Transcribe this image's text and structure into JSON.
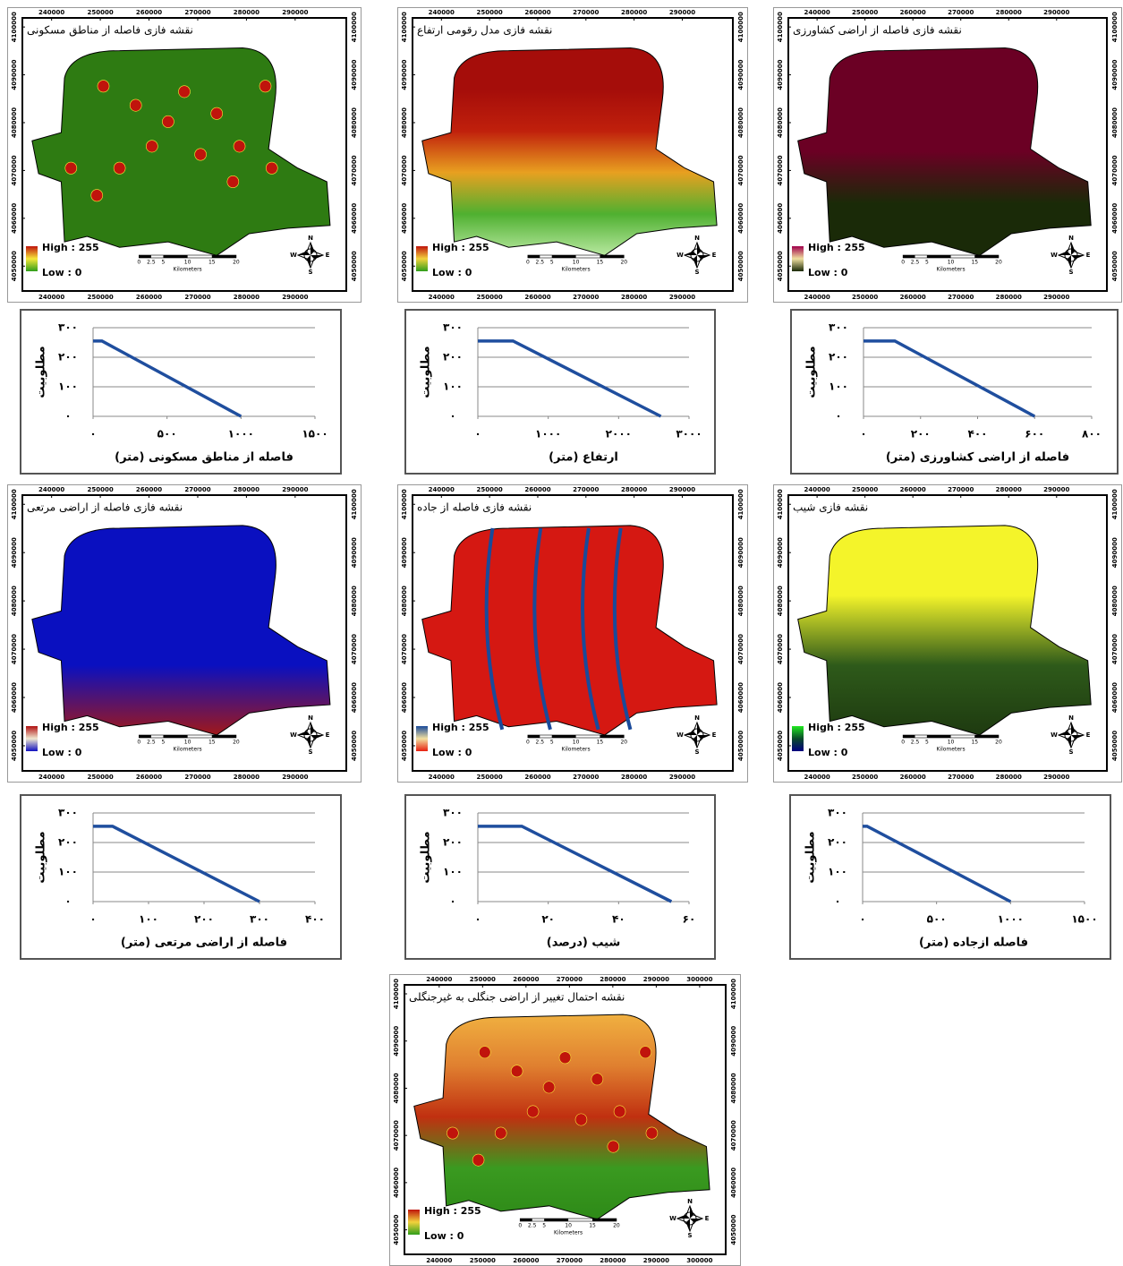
{
  "map_axes": {
    "xticks": [
      240000,
      250000,
      260000,
      270000,
      280000,
      290000
    ],
    "xlim": [
      234000,
      300500
    ],
    "yticks": [
      4050000,
      4060000,
      4070000,
      4080000,
      4090000,
      4100000
    ],
    "ylim": [
      4044800,
      4101900
    ]
  },
  "map_legend": {
    "high": "High : 255",
    "low": "Low : 0"
  },
  "scale_bar": {
    "labels": [
      0,
      2.5,
      5,
      10,
      15,
      20
    ],
    "unit": "Kilometers"
  },
  "compass": {
    "north": "N",
    "east": "E",
    "south": "S",
    "west": "W"
  },
  "maps": [
    {
      "title": "نقشه فازی فاصله از مناطق مسکونی",
      "fill": [
        "#2e7b12",
        "#2e7b12"
      ],
      "legend_colors": [
        "#c0140c",
        "#f6e83a",
        "#2f9e1a"
      ]
    },
    {
      "title": "نقشه فازی مدل رقومی ارتفاع",
      "fill": [
        "#a50d0a",
        "#a50d0a",
        "#c0200c",
        "#e8a020",
        "#4fb030",
        "#b8e8a0"
      ],
      "legend_colors": [
        "#c0140c",
        "#f2d23c",
        "#2f9e1a"
      ]
    },
    {
      "title": "نقشه فازی فاصله از اراضی کشاورزی",
      "fill": [
        "#6b0024",
        "#6b0024",
        "#6b0024",
        "#1a2a08",
        "#1a2a08"
      ],
      "legend_colors": [
        "#a0004a",
        "#efe0a0",
        "#1a2a08"
      ]
    },
    {
      "title": "نقشه فازی فاصله از اراضی مرتعی",
      "fill": [
        "#0a10c0",
        "#0a10c0",
        "#0a10c0",
        "#a0181a"
      ],
      "legend_colors": [
        "#b01010",
        "#f0e8d0",
        "#1010c0"
      ]
    },
    {
      "title": "نقشه فازی فاصله از جاده",
      "fill": [
        "#d51812",
        "#d51812"
      ],
      "legend_colors": [
        "#1a4a9a",
        "#f2e0a0",
        "#e82010"
      ]
    },
    {
      "title": "نقشه فازی شیب",
      "fill": [
        "#f4f42a",
        "#f4f42a",
        "#2e5a1a",
        "#1e3a10"
      ],
      "legend_colors": [
        "#20e820",
        "#0a4a2a",
        "#000080"
      ]
    },
    {
      "title": "نقشه احتمال تغییر از اراضی جنگلی به غیرجنگلی",
      "fill": [
        "#f0b040",
        "#e08030",
        "#c03010",
        "#3a9a20",
        "#2e8a18"
      ],
      "legend_colors": [
        "#c0140c",
        "#f2d23c",
        "#2f9e1a"
      ],
      "xticks": [
        240000,
        250000,
        260000,
        270000,
        280000,
        290000,
        300000
      ],
      "xlim": [
        232000,
        306000
      ]
    }
  ],
  "chart_data": [
    {
      "type": "line",
      "x_label": "فاصله از مناطق مسکونی (متر)",
      "y_label": "مطلوبیت",
      "color": "#1f4e9e",
      "x": [
        0,
        60,
        1000
      ],
      "values": [
        255,
        255,
        0
      ],
      "xlim": [
        0,
        1500
      ],
      "ylim": [
        0,
        300
      ],
      "xticks": [
        {
          "value": 0,
          "label": "۰"
        },
        {
          "value": 500,
          "label": "۵۰۰"
        },
        {
          "value": 1000,
          "label": "۱۰۰۰"
        },
        {
          "value": 1500,
          "label": "۱۵۰۰"
        }
      ],
      "yticks": [
        {
          "value": 0,
          "label": "۰"
        },
        {
          "value": 100,
          "label": "۱۰۰"
        },
        {
          "value": 200,
          "label": "۲۰۰"
        },
        {
          "value": 300,
          "label": "۳۰۰"
        }
      ],
      "grid": true
    },
    {
      "type": "line",
      "x_label": "ارتفاع (متر)",
      "y_label": "مطلوبیت",
      "color": "#1f4e9e",
      "x": [
        0,
        500,
        2600
      ],
      "values": [
        255,
        255,
        0
      ],
      "xlim": [
        0,
        3000
      ],
      "ylim": [
        0,
        300
      ],
      "xticks": [
        {
          "value": 0,
          "label": "۰"
        },
        {
          "value": 1000,
          "label": "۱۰۰۰"
        },
        {
          "value": 2000,
          "label": "۲۰۰۰"
        },
        {
          "value": 3000,
          "label": "۳۰۰۰"
        }
      ],
      "yticks": [
        {
          "value": 0,
          "label": "۰"
        },
        {
          "value": 100,
          "label": "۱۰۰"
        },
        {
          "value": 200,
          "label": "۲۰۰"
        },
        {
          "value": 300,
          "label": "۳۰۰"
        }
      ],
      "grid": true
    },
    {
      "type": "line",
      "x_label": "فاصله از اراضی کشاورزی (متر)",
      "y_label": "مطلوبیت",
      "color": "#1f4e9e",
      "x": [
        0,
        110,
        600
      ],
      "values": [
        255,
        255,
        0
      ],
      "xlim": [
        0,
        800
      ],
      "ylim": [
        0,
        300
      ],
      "xticks": [
        {
          "value": 0,
          "label": "۰"
        },
        {
          "value": 200,
          "label": "۲۰۰"
        },
        {
          "value": 400,
          "label": "۴۰۰"
        },
        {
          "value": 600,
          "label": "۶۰۰"
        },
        {
          "value": 800,
          "label": "۸۰۰"
        }
      ],
      "yticks": [
        {
          "value": 0,
          "label": "۰"
        },
        {
          "value": 100,
          "label": "۱۰۰"
        },
        {
          "value": 200,
          "label": "۲۰۰"
        },
        {
          "value": 300,
          "label": "۳۰۰"
        }
      ],
      "grid": true
    },
    {
      "type": "line",
      "x_label": "فاصله از اراضی مرتعی (متر)",
      "y_label": "مطلوبیت",
      "color": "#1f4e9e",
      "x": [
        0,
        35,
        300
      ],
      "values": [
        255,
        255,
        0
      ],
      "xlim": [
        0,
        400
      ],
      "ylim": [
        0,
        300
      ],
      "xticks": [
        {
          "value": 0,
          "label": "۰"
        },
        {
          "value": 100,
          "label": "۱۰۰"
        },
        {
          "value": 200,
          "label": "۲۰۰"
        },
        {
          "value": 300,
          "label": "۳۰۰"
        },
        {
          "value": 400,
          "label": "۴۰۰"
        }
      ],
      "yticks": [
        {
          "value": 0,
          "label": "۰"
        },
        {
          "value": 100,
          "label": "۱۰۰"
        },
        {
          "value": 200,
          "label": "۲۰۰"
        },
        {
          "value": 300,
          "label": "۳۰۰"
        }
      ],
      "grid": true
    },
    {
      "type": "line",
      "x_label": "شیب (درصد)",
      "y_label": "مطلوبیت",
      "color": "#1f4e9e",
      "x": [
        0,
        12.5,
        55
      ],
      "values": [
        255,
        255,
        0
      ],
      "xlim": [
        0,
        60
      ],
      "ylim": [
        0,
        300
      ],
      "xticks": [
        {
          "value": 0,
          "label": "۰"
        },
        {
          "value": 20,
          "label": "۲۰"
        },
        {
          "value": 40,
          "label": "۴۰"
        },
        {
          "value": 60,
          "label": "۶۰"
        }
      ],
      "yticks": [
        {
          "value": 0,
          "label": "۰"
        },
        {
          "value": 100,
          "label": "۱۰۰"
        },
        {
          "value": 200,
          "label": "۲۰۰"
        },
        {
          "value": 300,
          "label": "۳۰۰"
        }
      ],
      "grid": true
    },
    {
      "type": "line",
      "x_label": "فاصله ازجاده (متر)",
      "y_label": "مطلوبیت",
      "color": "#1f4e9e",
      "x": [
        0,
        30,
        1000
      ],
      "values": [
        255,
        255,
        0
      ],
      "xlim": [
        0,
        1500
      ],
      "ylim": [
        0,
        300
      ],
      "xticks": [
        {
          "value": 0,
          "label": "۰"
        },
        {
          "value": 500,
          "label": "۵۰۰"
        },
        {
          "value": 1000,
          "label": "۱۰۰۰"
        },
        {
          "value": 1500,
          "label": "۱۵۰۰"
        }
      ],
      "yticks": [
        {
          "value": 0,
          "label": "۰"
        },
        {
          "value": 100,
          "label": "۱۰۰"
        },
        {
          "value": 200,
          "label": "۲۰۰"
        },
        {
          "value": 300,
          "label": "۳۰۰"
        }
      ],
      "grid": true
    }
  ]
}
